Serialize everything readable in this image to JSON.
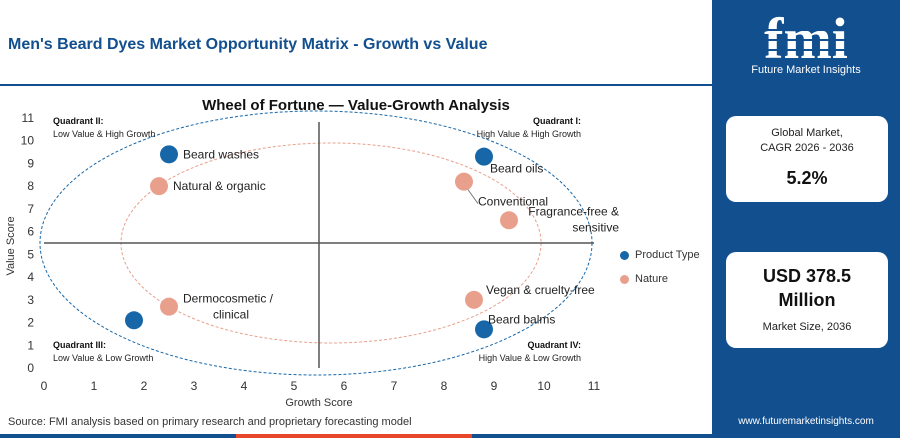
{
  "header": {
    "title": "Men's Beard Dyes Market Opportunity Matrix - Growth vs Value"
  },
  "colors": {
    "brand_blue": "#124f8e",
    "product_type": "#1767a8",
    "nature": "#e8a08c",
    "accent_red": "#e8472a"
  },
  "chart_data": {
    "type": "scatter",
    "title": "Wheel of Fortune — Value-Growth Analysis",
    "xlabel": "Growth Score",
    "ylabel": "Value Score",
    "xlim": [
      0,
      11
    ],
    "ylim": [
      0,
      11
    ],
    "xticks": [
      0,
      1,
      2,
      3,
      4,
      5,
      6,
      7,
      8,
      9,
      10,
      11
    ],
    "yticks": [
      0,
      1,
      2,
      3,
      4,
      5,
      6,
      7,
      8,
      9,
      10,
      11
    ],
    "divider": {
      "x": 5.5,
      "y": 5.5
    },
    "quadrants": [
      {
        "title": "Quadrant I:",
        "desc": "High Value & High Growth"
      },
      {
        "title": "Quadrant II:",
        "desc": "Low Value & High Growth"
      },
      {
        "title": "Quadrant III:",
        "desc": "Low Value & Low Growth"
      },
      {
        "title": "Quadrant IV:",
        "desc": "High Value & Low Growth"
      }
    ],
    "legend_position": "right",
    "series": [
      {
        "name": "Product Type",
        "color": "#1767a8",
        "points": [
          {
            "label": "Beard washes",
            "x": 2.5,
            "y": 9.4
          },
          {
            "label": "Beard oils",
            "x": 8.8,
            "y": 9.3
          },
          {
            "label": "",
            "x": 1.8,
            "y": 2.1
          },
          {
            "label": "Beard balms",
            "x": 8.8,
            "y": 1.7
          }
        ]
      },
      {
        "name": "Nature",
        "color": "#e8a08c",
        "points": [
          {
            "label": "Natural & organic",
            "x": 2.3,
            "y": 8.0
          },
          {
            "label": "Conventional",
            "x": 8.4,
            "y": 8.2
          },
          {
            "label": "Fragrance-free & sensitive",
            "x": 9.3,
            "y": 6.5
          },
          {
            "label": "Dermocosmetic / clinical",
            "x": 2.5,
            "y": 2.7
          },
          {
            "label": "Vegan & cruelty-free",
            "x": 8.6,
            "y": 3.0
          }
        ]
      }
    ]
  },
  "sidebar": {
    "logo_text": "fmi",
    "logo_subtitle": "Future Market Insights",
    "card1": {
      "label_line1": "Global Market,",
      "label_line2": "CAGR 2026 - 2036",
      "value": "5.2%"
    },
    "card2": {
      "value_line1": "USD 378.5",
      "value_line2": "Million",
      "label": "Market Size, 2036"
    }
  },
  "footer": {
    "source": "Source: FMI analysis based on primary research and proprietary forecasting model",
    "website": "www.futuremarketinsights.com"
  }
}
